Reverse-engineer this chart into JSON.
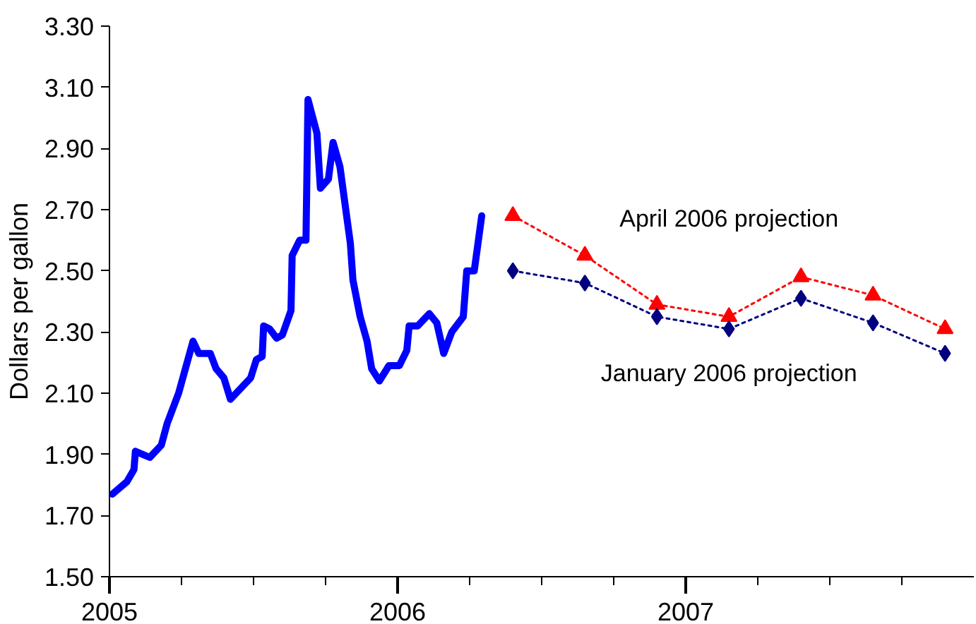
{
  "chart_data": {
    "type": "line",
    "ylabel": "Dollars per gallon",
    "xlim": [
      2005,
      2008
    ],
    "ylim": [
      1.5,
      3.3
    ],
    "xticks": [
      2005,
      {
        "value": 2005.25,
        "label": null
      },
      {
        "value": 2005.5,
        "label": null
      },
      {
        "value": 2005.75,
        "label": null
      },
      2006,
      {
        "value": 2006.25,
        "label": null
      },
      {
        "value": 2006.5,
        "label": null
      },
      {
        "value": 2006.75,
        "label": null
      },
      2007,
      {
        "value": 2007.25,
        "label": null
      },
      {
        "value": 2007.5,
        "label": null
      },
      {
        "value": 2007.75,
        "label": null
      }
    ],
    "yticks": [
      {
        "value": 1.5,
        "label": "1.50"
      },
      {
        "value": 1.7,
        "label": "1.70"
      },
      {
        "value": 1.9,
        "label": "1.90"
      },
      {
        "value": 2.1,
        "label": "2.10"
      },
      {
        "value": 2.3,
        "label": "2.30"
      },
      {
        "value": 2.5,
        "label": "2.50"
      },
      {
        "value": 2.7,
        "label": "2.70"
      },
      {
        "value": 2.9,
        "label": "2.90"
      },
      {
        "value": 3.1,
        "label": "3.10"
      },
      {
        "value": 3.3,
        "label": "3.30"
      }
    ],
    "grid": false,
    "series": [
      {
        "color": "#0000ff",
        "line_style": "solid",
        "marker": "none",
        "x": [
          2005.01,
          2005.06,
          2005.085,
          2005.09,
          2005.14,
          2005.18,
          2005.2,
          2005.24,
          2005.29,
          2005.31,
          2005.35,
          2005.37,
          2005.397,
          2005.42,
          2005.45,
          2005.49,
          2005.51,
          2005.53,
          2005.535,
          2005.556,
          2005.58,
          2005.6,
          2005.63,
          2005.634,
          2005.66,
          2005.682,
          2005.689,
          2005.72,
          2005.732,
          2005.76,
          2005.776,
          2005.8,
          2005.836,
          2005.845,
          2005.87,
          2005.894,
          2005.91,
          2005.937,
          2005.97,
          2006.006,
          2006.032,
          2006.04,
          2006.07,
          2006.11,
          2006.136,
          2006.16,
          2006.188,
          2006.228,
          2006.24,
          2006.266,
          2006.292
        ],
        "values": [
          1.77,
          1.81,
          1.85,
          1.91,
          1.89,
          1.93,
          2.0,
          2.1,
          2.27,
          2.23,
          2.23,
          2.18,
          2.15,
          2.08,
          2.11,
          2.15,
          2.21,
          2.22,
          2.32,
          2.31,
          2.28,
          2.29,
          2.37,
          2.55,
          2.6,
          2.6,
          3.06,
          2.95,
          2.77,
          2.8,
          2.92,
          2.84,
          2.59,
          2.47,
          2.35,
          2.27,
          2.18,
          2.14,
          2.19,
          2.19,
          2.24,
          2.32,
          2.32,
          2.36,
          2.33,
          2.23,
          2.3,
          2.35,
          2.5,
          2.5,
          2.68
        ]
      },
      {
        "name": "April 2006 projection",
        "color": "#ff0000",
        "line_style": "dotted",
        "marker": "triangle",
        "x": [
          2006.4,
          2006.65,
          2006.9,
          2007.15,
          2007.4,
          2007.65,
          2007.9
        ],
        "values": [
          2.68,
          2.55,
          2.39,
          2.35,
          2.48,
          2.42,
          2.31
        ]
      },
      {
        "name": "January 2006 projection",
        "color": "#000080",
        "line_style": "dotted",
        "marker": "diamond",
        "x": [
          2006.4,
          2006.65,
          2006.9,
          2007.15,
          2007.4,
          2007.65,
          2007.9
        ],
        "values": [
          2.5,
          2.46,
          2.35,
          2.31,
          2.41,
          2.33,
          2.23
        ]
      }
    ]
  }
}
